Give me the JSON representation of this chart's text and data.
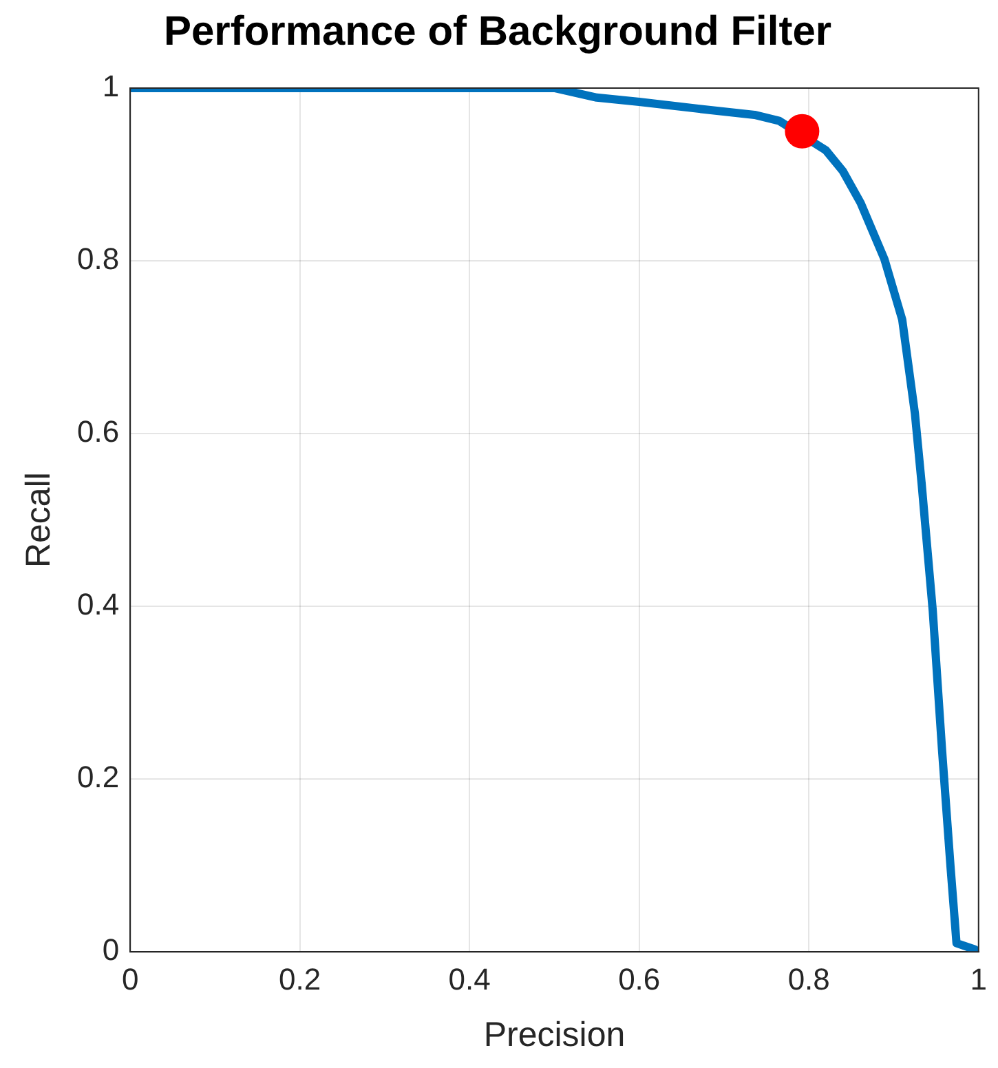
{
  "chart_data": {
    "type": "line",
    "title": "Performance of Background Filter",
    "xlabel": "Precision",
    "ylabel": "Recall",
    "xlim": [
      0,
      1
    ],
    "ylim": [
      0,
      1
    ],
    "xticks": [
      0,
      0.2,
      0.4,
      0.6,
      0.8,
      1
    ],
    "yticks": [
      0,
      0.2,
      0.4,
      0.6,
      0.8,
      1
    ],
    "grid": true,
    "legend": false,
    "series": [
      {
        "marker": "none",
        "line_style": "solid",
        "color": "#0072bd",
        "x": [
          0,
          0.1,
          0.2,
          0.3,
          0.4,
          0.5,
          0.55,
          0.6,
          0.671,
          0.736,
          0.765,
          0.82,
          0.84,
          0.861,
          0.889,
          0.91,
          0.925,
          0.933,
          0.946,
          0.957,
          0.967,
          0.974,
          0.995,
          1
        ],
        "values": [
          1,
          1,
          1,
          1,
          1,
          1,
          0.989,
          0.984,
          0.976,
          0.969,
          0.962,
          0.928,
          0.904,
          0.867,
          0.802,
          0.732,
          0.623,
          0.541,
          0.395,
          0.233,
          0.098,
          0.01,
          0.003,
          0
        ]
      },
      {
        "type": "scatter",
        "marker": "circle",
        "color": "#ff0000",
        "x": [
          0.792
        ],
        "values": [
          0.95
        ]
      }
    ]
  }
}
